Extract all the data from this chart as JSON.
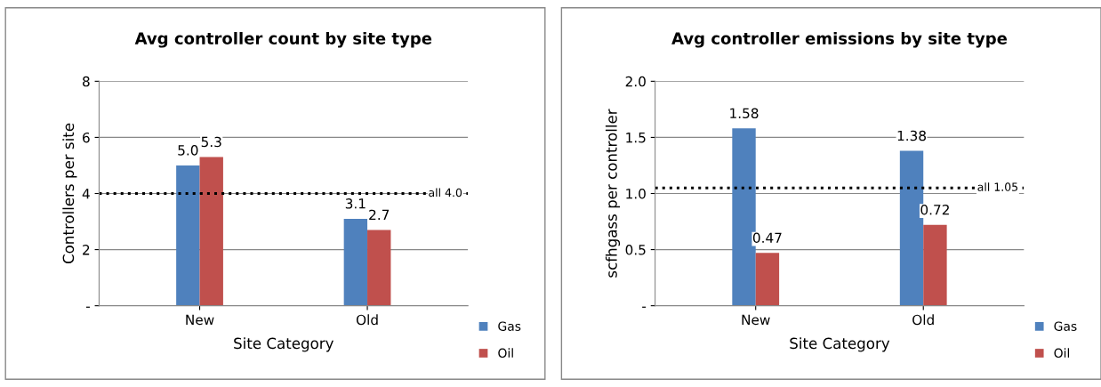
{
  "chart_data": [
    {
      "type": "bar",
      "title": "Avg controller count by site type",
      "xlabel": "Site Category",
      "ylabel": "Controllers per site",
      "categories": [
        "New",
        "Old"
      ],
      "series": [
        {
          "name": "Gas",
          "color": "#4f81bd",
          "values": [
            5.0,
            3.1
          ],
          "value_labels": [
            "5.0",
            "3.1"
          ]
        },
        {
          "name": "Oil",
          "color": "#c0504d",
          "values": [
            5.3,
            2.7
          ],
          "value_labels": [
            "5.3",
            "2.7"
          ]
        }
      ],
      "ylim": [
        0,
        8
      ],
      "yticks": [
        {
          "value": 0,
          "label": "-"
        },
        2,
        4,
        6,
        8
      ],
      "grid": "y",
      "legend": "bottom right",
      "ref_lines": [
        {
          "axis": "y",
          "value": 4.0,
          "label": "all 4.0",
          "line_style": "dotted",
          "color": "#000000"
        }
      ]
    },
    {
      "type": "bar",
      "title": "Avg controller emissions by site type",
      "xlabel": "Site Category",
      "ylabel": "scfhgass per controller",
      "categories": [
        "New",
        "Old"
      ],
      "series": [
        {
          "name": "Gas",
          "color": "#4f81bd",
          "values": [
            1.58,
            1.38
          ]
        },
        {
          "name": "Oil",
          "color": "#c0504d",
          "values": [
            0.47,
            0.72
          ]
        }
      ],
      "ylim": [
        0,
        2.0
      ],
      "yticks": [
        {
          "value": 0,
          "label": "-"
        },
        {
          "value": 0.5,
          "label": "0.5"
        },
        {
          "value": 1.0,
          "label": "1.0"
        },
        {
          "value": 1.5,
          "label": "1.5"
        },
        {
          "value": 2.0,
          "label": "2.0"
        }
      ],
      "grid": "y",
      "legend": "bottom right",
      "data_labels": true,
      "ref_lines": [
        {
          "axis": "y",
          "value": 1.05,
          "label": "all 1.05",
          "line_style": "dotted",
          "color": "#000000"
        }
      ]
    }
  ]
}
